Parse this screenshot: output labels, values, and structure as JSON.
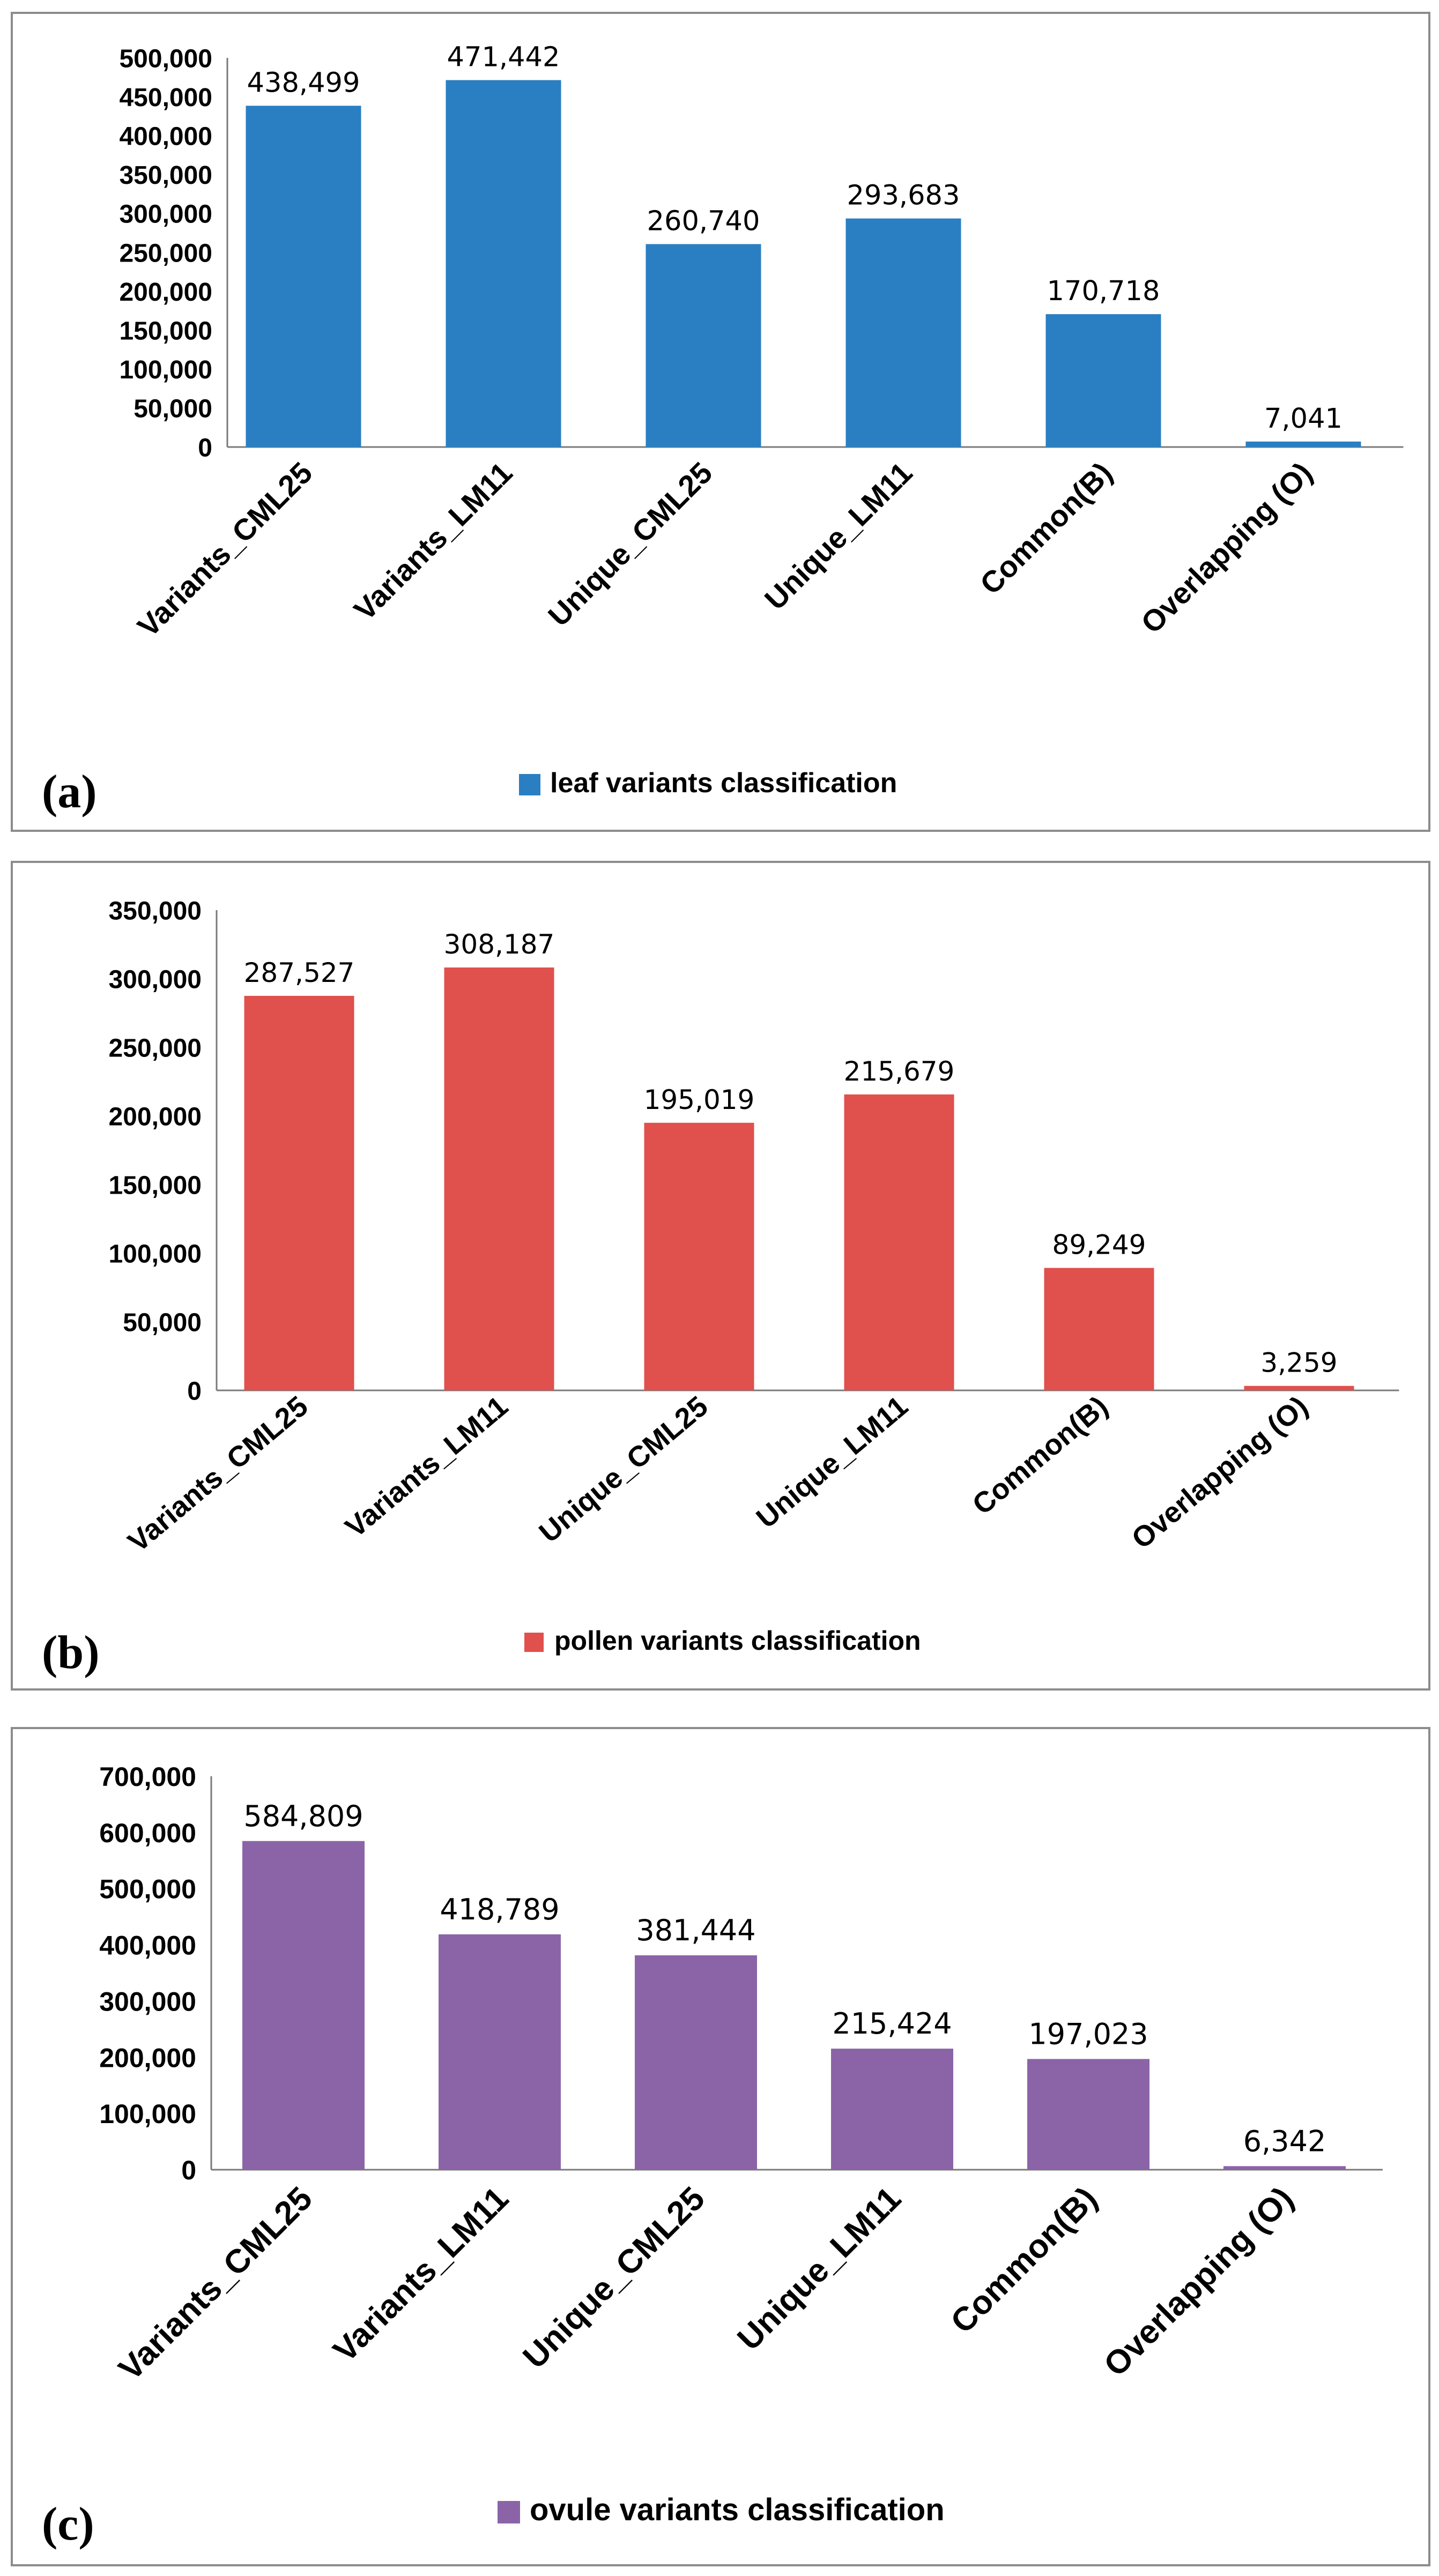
{
  "chart_data": [
    {
      "type": "bar",
      "panel_label": "(a)",
      "legend": "leaf variants classification",
      "color": "#2A7FC2",
      "categories": [
        "Variants_CML25",
        "Variants_LM11",
        "Unique_CML25",
        "Unique_LM11",
        "Common(B)",
        "Overlapping (O)"
      ],
      "values": [
        438499,
        471442,
        260740,
        293683,
        170718,
        7041
      ],
      "data_labels": [
        "438,499",
        "471,442",
        "260,740",
        "293,683",
        "170,718",
        "7,041"
      ],
      "yticks": [
        "0",
        "50,000",
        "100,000",
        "150,000",
        "200,000",
        "250,000",
        "300,000",
        "350,000",
        "400,000",
        "450,000",
        "500,000"
      ],
      "ylim": [
        0,
        500000
      ],
      "ystep": 50000,
      "grid": false
    },
    {
      "type": "bar",
      "panel_label": "(b)",
      "legend": "pollen variants classification",
      "color": "#E0504C",
      "categories": [
        "Variants_CML25",
        "Variants_LM11",
        "Unique_CML25",
        "Unique_LM11",
        "Common(B)",
        "Overlapping (O)"
      ],
      "values": [
        287527,
        308187,
        195019,
        215679,
        89249,
        3259
      ],
      "data_labels": [
        "287,527",
        "308,187",
        "195,019",
        "215,679",
        "89,249",
        "3,259"
      ],
      "yticks": [
        "0",
        "50,000",
        "100,000",
        "150,000",
        "200,000",
        "250,000",
        "300,000",
        "350,000"
      ],
      "ylim": [
        0,
        350000
      ],
      "ystep": 50000,
      "grid": false
    },
    {
      "type": "bar",
      "panel_label": "(c)",
      "legend": "ovule variants classification",
      "color": "#8B64A8",
      "categories": [
        "Variants_CML25",
        "Variants_LM11",
        "Unique_CML25",
        "Unique_LM11",
        "Common(B)",
        "Overlapping (O)"
      ],
      "values": [
        584809,
        418789,
        381444,
        215424,
        197023,
        6342
      ],
      "data_labels": [
        "584,809",
        "418,789",
        "381,444",
        "215,424",
        "197,023",
        "6,342"
      ],
      "yticks": [
        "0",
        "100,000",
        "200,000",
        "300,000",
        "400,000",
        "500,000",
        "600,000",
        "700,000"
      ],
      "ylim": [
        0,
        700000
      ],
      "ystep": 100000,
      "grid": false
    }
  ]
}
